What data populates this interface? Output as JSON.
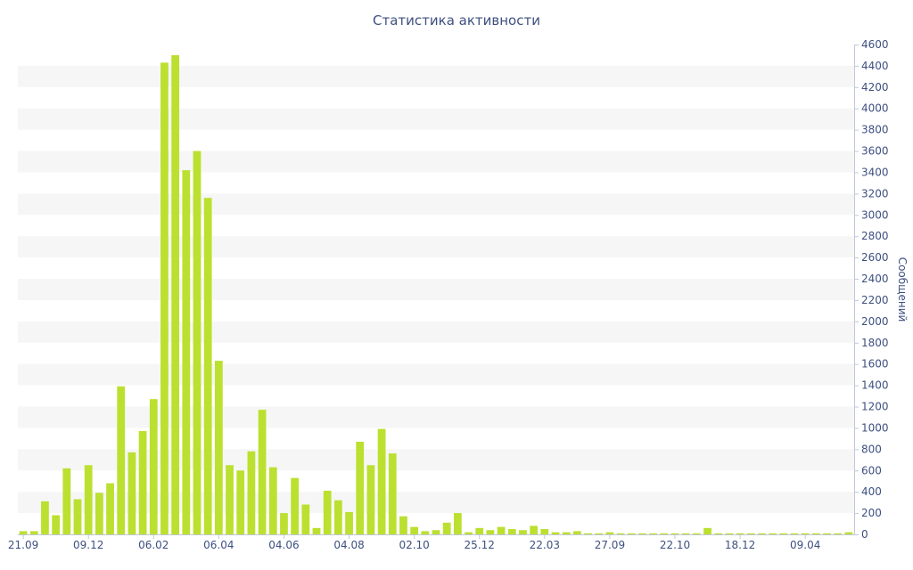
{
  "chart_data": {
    "type": "bar",
    "title": "Статистика активности",
    "ylabel": "Сообщений",
    "xlabel": "",
    "ylim": [
      0,
      4600
    ],
    "y_axis_position": "right",
    "y_ticks": [
      0,
      200,
      400,
      600,
      800,
      1000,
      1200,
      1400,
      1600,
      1800,
      2000,
      2200,
      2400,
      2600,
      2800,
      3000,
      3200,
      3400,
      3600,
      3800,
      4000,
      4200,
      4400,
      4600
    ],
    "grid": "alternating horizontal bands",
    "bar_color": "#bbe030",
    "band_color": "#f6f6f6",
    "text_color": "#3d5080",
    "x_tick_labels": [
      {
        "index": 0,
        "label": "21.09"
      },
      {
        "index": 6,
        "label": "09.12"
      },
      {
        "index": 12,
        "label": "06.02"
      },
      {
        "index": 18,
        "label": "06.04"
      },
      {
        "index": 24,
        "label": "04.06"
      },
      {
        "index": 30,
        "label": "04.08"
      },
      {
        "index": 36,
        "label": "02.10"
      },
      {
        "index": 42,
        "label": "25.12"
      },
      {
        "index": 48,
        "label": "22.03"
      },
      {
        "index": 54,
        "label": "27.09"
      },
      {
        "index": 60,
        "label": "22.10"
      },
      {
        "index": 66,
        "label": "18.12"
      },
      {
        "index": 72,
        "label": "09.04"
      }
    ],
    "values": [
      30,
      30,
      310,
      180,
      620,
      330,
      650,
      390,
      480,
      1390,
      770,
      970,
      1270,
      4430,
      4500,
      3420,
      3600,
      3160,
      1630,
      650,
      600,
      780,
      1170,
      630,
      200,
      530,
      280,
      60,
      410,
      320,
      210,
      870,
      650,
      990,
      760,
      170,
      70,
      30,
      40,
      110,
      200,
      20,
      60,
      40,
      70,
      50,
      40,
      80,
      50,
      20,
      20,
      30,
      10,
      10,
      20,
      10,
      10,
      10,
      10,
      10,
      10,
      10,
      10,
      60,
      10,
      10,
      10,
      10,
      10,
      10,
      10,
      10,
      10,
      10,
      10,
      10,
      20
    ]
  }
}
